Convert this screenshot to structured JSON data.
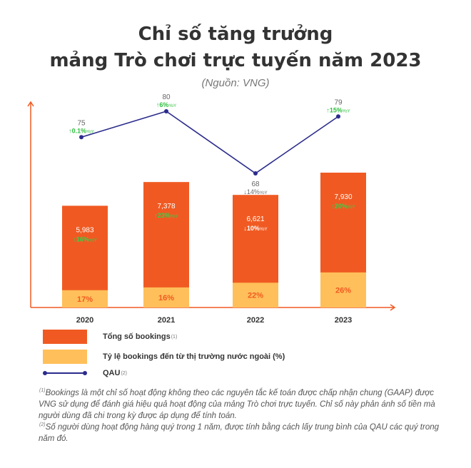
{
  "chart_data": {
    "type": "bar",
    "title_line1": "Chỉ số tăng trưởng",
    "title_line2": "mảng Trò chơi trực tuyến năm 2023",
    "source": "(Nguồn: VNG)",
    "categories": [
      "2020",
      "2021",
      "2022",
      "2023"
    ],
    "series": [
      {
        "name": "Tổng số bookings",
        "values": [
          5983,
          7378,
          6621,
          7930
        ],
        "value_labels": [
          "5,983",
          "7,378",
          "6,621",
          "7,930"
        ],
        "yoy": [
          "16%",
          "23%",
          "10%",
          "20%"
        ],
        "yoy_direction": [
          "up",
          "up",
          "down",
          "up"
        ],
        "color": "#f05a22"
      },
      {
        "name": "Tỷ lệ bookings đến từ thị trường nước ngoài (%)",
        "values": [
          17,
          16,
          22,
          26
        ],
        "value_labels": [
          "17%",
          "16%",
          "22%",
          "26%"
        ],
        "color": "#ffbf5a"
      },
      {
        "name": "QAU",
        "type": "line",
        "values": [
          75,
          80,
          68,
          79
        ],
        "value_labels": [
          "75",
          "80",
          "68",
          "79"
        ],
        "yoy": [
          "0.1%",
          "6%",
          "14%",
          "15%"
        ],
        "yoy_direction": [
          "up",
          "up",
          "down",
          "up"
        ],
        "color": "#2b2c8c"
      }
    ],
    "yoy_suffix": "YoY",
    "axis_color": "#f05a22",
    "up_color": "#2fbf3f",
    "down_color": "#666666",
    "legend_placement": "bottom-left"
  },
  "legend": {
    "bookings": "Tổng số bookings",
    "bookings_sup": "(1)",
    "foreign": "Tỷ lệ bookings đến từ thị trường nước ngoài (%)",
    "qau": "QAU",
    "qau_sup": "(2)"
  },
  "notes": {
    "n1_marker": "(1)",
    "n1_text": "Bookings là một chỉ số hoạt động không theo các nguyên tắc kế toán được chấp nhận chung (GAAP) được VNG sử dụng để đánh giá hiệu quả hoạt động của mảng Trò chơi trực tuyến. Chỉ số này phản ánh số tiền mà người dùng đã chi trong kỳ được áp dụng để tính toán.",
    "n2_marker": "(2)",
    "n2_text": "Số người dùng hoạt động hàng quý trong 1 năm, được tính bằng cách lấy trung bình của QAU các quý trong năm đó."
  }
}
